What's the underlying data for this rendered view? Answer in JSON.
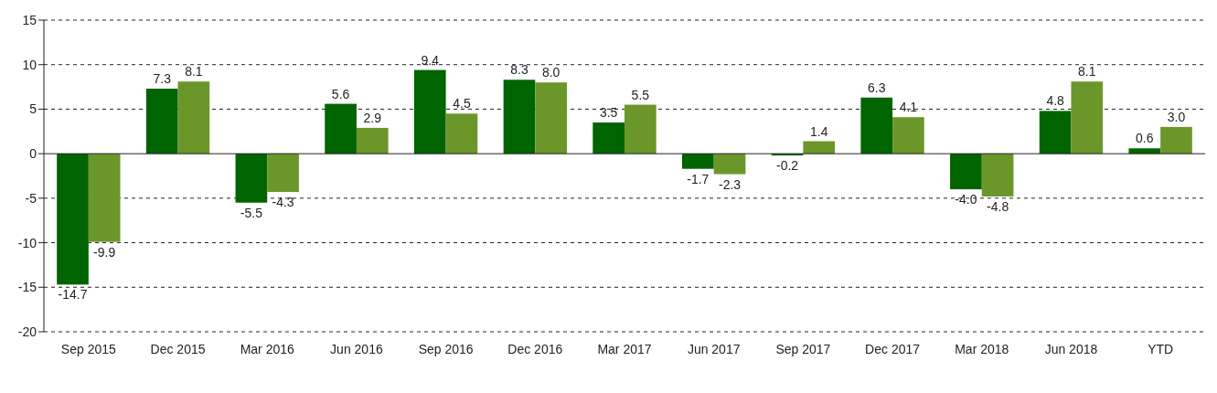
{
  "chart_data": {
    "type": "bar",
    "categories": [
      "Sep 2015",
      "Dec 2015",
      "Mar 2016",
      "Jun 2016",
      "Sep 2016",
      "Dec 2016",
      "Mar 2017",
      "Jun 2017",
      "Sep 2017",
      "Dec 2017",
      "Mar 2018",
      "Jun 2018",
      "YTD"
    ],
    "series": [
      {
        "color": "#006400",
        "values": [
          -14.7,
          7.3,
          -5.5,
          5.6,
          9.4,
          8.3,
          3.5,
          -1.7,
          -0.2,
          6.3,
          -4.0,
          4.8,
          0.6
        ],
        "value_labels": [
          "-14.7",
          "7.3",
          "-5.5",
          "5.6",
          "9.4",
          "8.3",
          "3.5",
          "-1.7",
          "-0.2",
          "6.3",
          "-4.0",
          "4.8",
          "0.6"
        ]
      },
      {
        "color": "#6b972a",
        "values": [
          -9.9,
          8.1,
          -4.3,
          2.9,
          4.5,
          8.0,
          5.5,
          -2.3,
          1.4,
          4.1,
          -4.8,
          8.1,
          3.0
        ],
        "value_labels": [
          "-9.9",
          "8.1",
          "-4.3",
          "2.9",
          "4.5",
          "8.0",
          "5.5",
          "-2.3",
          "1.4",
          "4.1",
          "-4.8",
          "8.1",
          "3.0"
        ]
      }
    ],
    "ylim": [
      -20,
      15
    ],
    "yticks": [
      -20,
      -15,
      -10,
      -5,
      0,
      5,
      10,
      15
    ],
    "grid": "y"
  }
}
